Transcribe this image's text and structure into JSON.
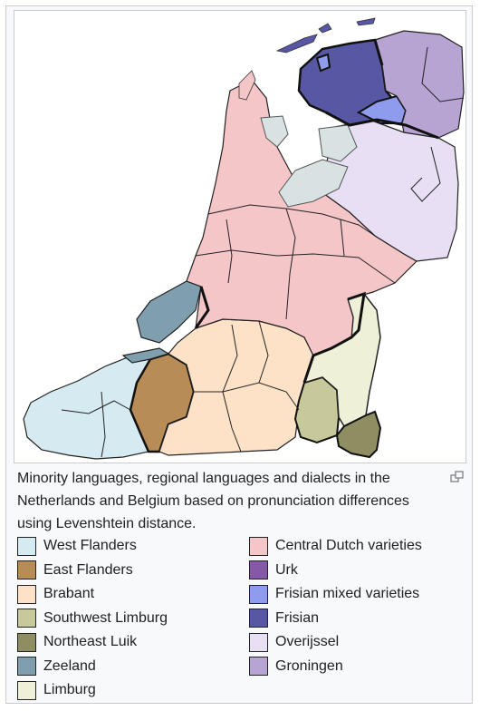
{
  "caption": "Minority languages, regional languages and dialects in the Netherlands and Belgium based on pronunciation differences using Levenshtein distance.",
  "legend": {
    "left": [
      {
        "label": "West Flanders",
        "color": "#d6eaf2"
      },
      {
        "label": "East Flanders",
        "color": "#b88c57"
      },
      {
        "label": "Brabant",
        "color": "#fde2c8"
      },
      {
        "label": "Southwest Limburg",
        "color": "#c7c99a"
      },
      {
        "label": "Northeast Luik",
        "color": "#8f8d62"
      },
      {
        "label": "Zeeland",
        "color": "#7f9fae"
      },
      {
        "label": "Limburg",
        "color": "#eef0d8"
      }
    ],
    "right": [
      {
        "label": "Central Dutch varieties",
        "color": "#f5c6c8"
      },
      {
        "label": "Urk",
        "color": "#8559a8"
      },
      {
        "label": "Frisian mixed varieties",
        "color": "#8f9bec"
      },
      {
        "label": "Frisian",
        "color": "#5857a3"
      },
      {
        "label": "Overijssel",
        "color": "#e8dff5"
      },
      {
        "label": "Groningen",
        "color": "#b7a4d2"
      }
    ]
  },
  "icons": {
    "enlarge": "enlarge-icon"
  }
}
